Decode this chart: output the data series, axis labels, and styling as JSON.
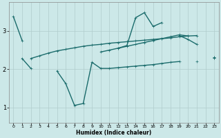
{
  "xlabel": "Humidex (Indice chaleur)",
  "bg_color": "#cce8e8",
  "line_color": "#1a6b6b",
  "grid_color": "#b0cccc",
  "x": [
    0,
    1,
    2,
    3,
    4,
    5,
    6,
    7,
    8,
    9,
    10,
    11,
    12,
    13,
    14,
    15,
    16,
    17,
    18,
    19,
    20,
    21,
    22,
    23
  ],
  "curve_main": [
    3.38,
    2.75,
    null,
    null,
    null,
    null,
    null,
    null,
    null,
    null,
    null,
    null,
    2.55,
    2.62,
    3.35,
    3.48,
    3.12,
    3.22,
    null,
    2.88,
    2.78,
    2.65,
    null,
    2.3
  ],
  "curve_line1": [
    null,
    null,
    2.28,
    2.35,
    2.42,
    2.48,
    2.52,
    2.56,
    2.6,
    2.63,
    2.65,
    2.68,
    2.7,
    2.72,
    2.74,
    2.76,
    2.78,
    2.8,
    2.82,
    2.85,
    2.87,
    2.88,
    null,
    2.32
  ],
  "curve_line2": [
    null,
    null,
    null,
    null,
    null,
    null,
    null,
    null,
    null,
    null,
    2.45,
    2.5,
    2.55,
    2.6,
    2.65,
    2.7,
    2.75,
    2.8,
    2.85,
    2.9,
    2.87,
    null,
    null,
    2.32
  ],
  "curve_low": [
    null,
    2.28,
    2.02,
    null,
    null,
    1.95,
    1.62,
    1.05,
    1.1,
    2.18,
    2.02,
    2.02,
    2.04,
    2.06,
    2.08,
    2.1,
    2.12,
    2.15,
    2.18,
    2.2,
    null,
    2.2,
    null,
    2.3
  ],
  "xlim": [
    -0.5,
    23.5
  ],
  "ylim": [
    0.6,
    3.75
  ],
  "yticks": [
    1,
    2,
    3
  ],
  "xticks": [
    0,
    1,
    2,
    3,
    4,
    5,
    6,
    7,
    8,
    9,
    10,
    11,
    12,
    13,
    14,
    15,
    16,
    17,
    18,
    19,
    20,
    21,
    22,
    23
  ]
}
